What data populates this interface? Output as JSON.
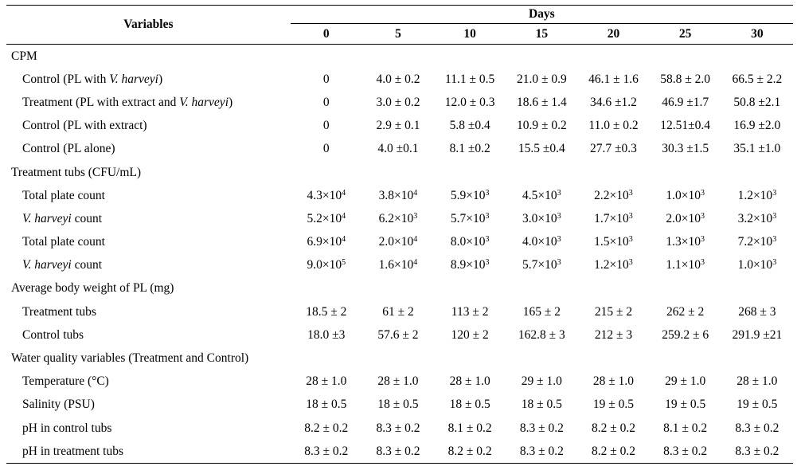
{
  "header": {
    "variables_label": "Variables",
    "days_label": "Days",
    "days": [
      "0",
      "5",
      "10",
      "15",
      "20",
      "25",
      "30"
    ]
  },
  "sections": [
    {
      "title": "CPM",
      "rows": [
        {
          "label_parts": [
            {
              "t": "Control (PL with "
            },
            {
              "t": "V. harveyi",
              "i": true
            },
            {
              "t": ")"
            }
          ],
          "values": [
            "0",
            "4.0 ± 0.2",
            "11.1 ± 0.5",
            "21.0 ± 0.9",
            "46.1 ± 1.6",
            "58.8 ± 2.0",
            "66.5 ± 2.2"
          ]
        },
        {
          "label_parts": [
            {
              "t": "Treatment (PL with extract and "
            },
            {
              "t": "V. harveyi",
              "i": true
            },
            {
              "t": ")"
            }
          ],
          "values": [
            "0",
            "3.0 ± 0.2",
            "12.0 ± 0.3",
            "18.6 ± 1.4",
            "34.6 ±1.2",
            "46.9 ±1.7",
            "50.8 ±2.1"
          ]
        },
        {
          "label_parts": [
            {
              "t": "Control (PL with extract)"
            }
          ],
          "values": [
            "0",
            "2.9 ± 0.1",
            "5.8 ±0.4",
            "10.9 ± 0.2",
            "11.0 ± 0.2",
            "12.51±0.4",
            "16.9 ±2.0"
          ]
        },
        {
          "label_parts": [
            {
              "t": "Control (PL alone)"
            }
          ],
          "values": [
            "0",
            "4.0 ±0.1",
            "8.1 ±0.2",
            "15.5 ±0.4",
            "27.7 ±0.3",
            "30.3 ±1.5",
            "35.1 ±1.0"
          ]
        }
      ]
    },
    {
      "title": "Treatment tubs (CFU/mL)",
      "rows": [
        {
          "label_parts": [
            {
              "t": "Total plate count"
            }
          ],
          "sci": [
            [
              "4.3×10",
              "4"
            ],
            [
              "3.8×10",
              "4"
            ],
            [
              "5.9×10",
              "3"
            ],
            [
              "4.5×10",
              "3"
            ],
            [
              "2.2×10",
              "3"
            ],
            [
              "1.0×10",
              "3"
            ],
            [
              "1.2×10",
              "3"
            ]
          ]
        },
        {
          "label_parts": [
            {
              "t": "V. harveyi",
              "i": true
            },
            {
              "t": " count"
            }
          ],
          "sci": [
            [
              "5.2×10",
              "4"
            ],
            [
              "6.2×10",
              "3"
            ],
            [
              "5.7×10",
              "3"
            ],
            [
              "3.0×10",
              "3"
            ],
            [
              "1.7×10",
              "3"
            ],
            [
              "2.0×10",
              "3"
            ],
            [
              "3.2×10",
              "3"
            ]
          ]
        },
        {
          "label_parts": [
            {
              "t": "Total plate count"
            }
          ],
          "sci": [
            [
              "6.9×10",
              "4"
            ],
            [
              "2.0×10",
              "4"
            ],
            [
              "8.0×10",
              "3"
            ],
            [
              "4.0×10",
              "3"
            ],
            [
              "1.5×10",
              "3"
            ],
            [
              "1.3×10",
              "3"
            ],
            [
              "7.2×10",
              "3"
            ]
          ]
        },
        {
          "label_parts": [
            {
              "t": "V. harveyi",
              "i": true
            },
            {
              "t": " count"
            }
          ],
          "sci": [
            [
              "9.0×10",
              "5"
            ],
            [
              "1.6×10",
              "4"
            ],
            [
              "8.9×10",
              "3"
            ],
            [
              "5.7×10",
              "3"
            ],
            [
              "1.2×10",
              "3"
            ],
            [
              "1.1×10",
              "3"
            ],
            [
              "1.0×10",
              "3"
            ]
          ]
        }
      ]
    },
    {
      "title": "Average body weight of PL (mg)",
      "rows": [
        {
          "label_parts": [
            {
              "t": "Treatment tubs"
            }
          ],
          "values": [
            "18.5 ± 2",
            "61 ± 2",
            "113 ± 2",
            "165 ± 2",
            "215 ± 2",
            "262 ± 2",
            "268 ± 3"
          ]
        },
        {
          "label_parts": [
            {
              "t": "Control tubs"
            }
          ],
          "values": [
            "18.0 ±3",
            "57.6 ± 2",
            "120 ± 2",
            "162.8 ± 3",
            "212 ± 3",
            "259.2 ± 6",
            "291.9 ±21"
          ]
        }
      ]
    },
    {
      "title": "Water quality variables (Treatment and Control)",
      "rows": [
        {
          "label_parts": [
            {
              "t": "Temperature (°C)"
            }
          ],
          "values": [
            "28 ± 1.0",
            "28 ± 1.0",
            "28 ± 1.0",
            "29 ± 1.0",
            "28 ± 1.0",
            "29 ± 1.0",
            "28 ± 1.0"
          ]
        },
        {
          "label_parts": [
            {
              "t": "Salinity (PSU)"
            }
          ],
          "values": [
            "18 ± 0.5",
            "18 ± 0.5",
            "18 ± 0.5",
            "18 ± 0.5",
            "19 ± 0.5",
            "19 ± 0.5",
            "19 ± 0.5"
          ]
        },
        {
          "label_parts": [
            {
              "t": "pH in control tubs"
            }
          ],
          "values": [
            "8.2 ± 0.2",
            "8.3 ± 0.2",
            "8.1 ± 0.2",
            "8.3 ± 0.2",
            "8.2 ± 0.2",
            "8.1 ± 0.2",
            "8.3 ± 0.2"
          ]
        },
        {
          "label_parts": [
            {
              "t": "pH in treatment tubs"
            }
          ],
          "values": [
            "8.3 ± 0.2",
            "8.3 ± 0.2",
            "8.2 ± 0.2",
            "8.3 ± 0.2",
            "8.2 ± 0.2",
            "8.3 ± 0.2",
            "8.3 ± 0.2"
          ]
        }
      ]
    }
  ]
}
